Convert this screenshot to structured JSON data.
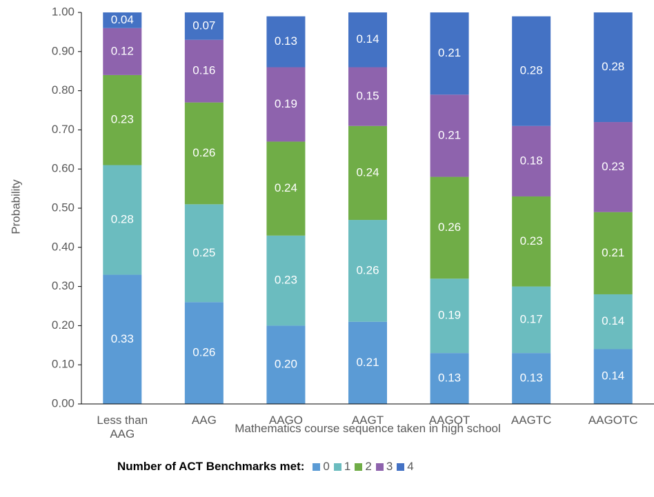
{
  "chart_data": {
    "type": "stacked_bar",
    "y_label": "Probability",
    "x_label": "Mathematics course sequence taken in high school",
    "legend_title": "Number of ACT Benchmarks met:",
    "categories": [
      "Less than AAG",
      "AAG",
      "AAGO",
      "AAGT",
      "AAGOT",
      "AAGTC",
      "AAGOTC"
    ],
    "series": [
      {
        "name": "0",
        "color": "#5b9bd5",
        "values": [
          0.33,
          0.26,
          0.2,
          0.21,
          0.13,
          0.13,
          0.14
        ],
        "value_labels": [
          "0.33",
          "0.26",
          "0.20",
          "0.21",
          "0.13",
          "0.13",
          "0.14"
        ]
      },
      {
        "name": "1",
        "color": "#6bbcbf",
        "values": [
          0.28,
          0.25,
          0.23,
          0.26,
          0.19,
          0.17,
          0.14
        ],
        "value_labels": [
          "0.28",
          "0.25",
          "0.23",
          "0.26",
          "0.19",
          "0.17",
          "0.14"
        ]
      },
      {
        "name": "2",
        "color": "#70ad47",
        "values": [
          0.23,
          0.26,
          0.24,
          0.24,
          0.26,
          0.23,
          0.21
        ],
        "value_labels": [
          "0.23",
          "0.26",
          "0.24",
          "0.24",
          "0.26",
          "0.23",
          "0.21"
        ]
      },
      {
        "name": "3",
        "color": "#8e63ad",
        "values": [
          0.12,
          0.16,
          0.19,
          0.15,
          0.21,
          0.18,
          0.23
        ],
        "value_labels": [
          "0.12",
          "0.16",
          "0.19",
          "0.15",
          "0.21",
          "0.18",
          "0.23"
        ]
      },
      {
        "name": "4",
        "color": "#4472c4",
        "values": [
          0.04,
          0.07,
          0.13,
          0.14,
          0.21,
          0.28,
          0.28
        ],
        "value_labels": [
          "0.04",
          "0.07",
          "0.13",
          "0.14",
          "0.21",
          "0.28",
          "0.28"
        ]
      }
    ],
    "ylim": [
      0,
      1
    ],
    "yticks": [
      {
        "value": 0,
        "label": "0.00"
      },
      {
        "value": 0.1,
        "label": "0.10"
      },
      {
        "value": 0.2,
        "label": "0.20"
      },
      {
        "value": 0.3,
        "label": "0.30"
      },
      {
        "value": 0.4,
        "label": "0.40"
      },
      {
        "value": 0.5,
        "label": "0.50"
      },
      {
        "value": 0.6,
        "label": "0.60"
      },
      {
        "value": 0.7,
        "label": "0.70"
      },
      {
        "value": 0.8,
        "label": "0.80"
      },
      {
        "value": 0.9,
        "label": "0.90"
      },
      {
        "value": 1,
        "label": "1.00"
      }
    ],
    "grid": false
  }
}
